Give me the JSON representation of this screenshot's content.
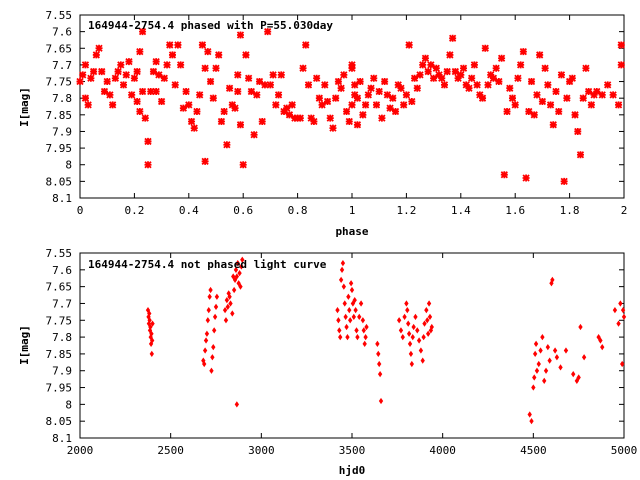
{
  "chart_data": [
    {
      "type": "scatter",
      "title": "164944-2754.4 phased with P=55.030day",
      "xlabel": "phase",
      "ylabel": "I[mag]",
      "xlim": [
        0,
        2
      ],
      "ylim": [
        7.55,
        8.1
      ],
      "y_inverted": true,
      "x_ticks": [
        "0",
        "0.2",
        "0.4",
        "0.6",
        "0.8",
        "1",
        "1.2",
        "1.4",
        "1.6",
        "1.8",
        "2"
      ],
      "y_ticks": [
        "7.55",
        "7.6",
        "7.65",
        "7.7",
        "7.75",
        "7.8",
        "7.85",
        "7.9",
        "7.95",
        "8",
        "8.05",
        "8.1"
      ],
      "grid": false,
      "marker_color": "#ff0000",
      "points": [
        [
          0.0,
          7.75
        ],
        [
          0.01,
          7.73
        ],
        [
          0.02,
          7.8
        ],
        [
          0.02,
          7.7
        ],
        [
          0.03,
          7.82
        ],
        [
          0.04,
          7.74
        ],
        [
          0.05,
          7.72
        ],
        [
          0.06,
          7.67
        ],
        [
          0.07,
          7.65
        ],
        [
          0.08,
          7.72
        ],
        [
          0.09,
          7.78
        ],
        [
          0.1,
          7.75
        ],
        [
          0.11,
          7.79
        ],
        [
          0.12,
          7.82
        ],
        [
          0.13,
          7.74
        ],
        [
          0.14,
          7.72
        ],
        [
          0.15,
          7.7
        ],
        [
          0.16,
          7.76
        ],
        [
          0.17,
          7.73
        ],
        [
          0.18,
          7.69
        ],
        [
          0.19,
          7.79
        ],
        [
          0.2,
          7.74
        ],
        [
          0.21,
          7.72
        ],
        [
          0.21,
          7.81
        ],
        [
          0.22,
          7.66
        ],
        [
          0.22,
          7.84
        ],
        [
          0.23,
          7.78
        ],
        [
          0.23,
          7.6
        ],
        [
          0.24,
          7.86
        ],
        [
          0.25,
          7.93
        ],
        [
          0.25,
          8.0
        ],
        [
          0.26,
          7.78
        ],
        [
          0.27,
          7.72
        ],
        [
          0.28,
          7.69
        ],
        [
          0.28,
          7.78
        ],
        [
          0.29,
          7.73
        ],
        [
          0.3,
          7.81
        ],
        [
          0.31,
          7.74
        ],
        [
          0.32,
          7.7
        ],
        [
          0.33,
          7.64
        ],
        [
          0.34,
          7.67
        ],
        [
          0.35,
          7.76
        ],
        [
          0.36,
          7.64
        ],
        [
          0.37,
          7.7
        ],
        [
          0.38,
          7.83
        ],
        [
          0.39,
          7.78
        ],
        [
          0.4,
          7.82
        ],
        [
          0.41,
          7.87
        ],
        [
          0.42,
          7.89
        ],
        [
          0.43,
          7.84
        ],
        [
          0.44,
          7.79
        ],
        [
          0.45,
          7.64
        ],
        [
          0.46,
          7.71
        ],
        [
          0.46,
          7.99
        ],
        [
          0.47,
          7.66
        ],
        [
          0.48,
          7.75
        ],
        [
          0.49,
          7.8
        ],
        [
          0.5,
          7.71
        ],
        [
          0.51,
          7.67
        ],
        [
          0.52,
          7.87
        ],
        [
          0.53,
          7.84
        ],
        [
          0.54,
          7.94
        ],
        [
          0.55,
          7.77
        ],
        [
          0.56,
          7.82
        ],
        [
          0.57,
          7.83
        ],
        [
          0.58,
          7.73
        ],
        [
          0.58,
          7.78
        ],
        [
          0.59,
          7.61
        ],
        [
          0.59,
          7.88
        ],
        [
          0.6,
          8.0
        ],
        [
          0.61,
          7.67
        ],
        [
          0.62,
          7.74
        ],
        [
          0.63,
          7.78
        ],
        [
          0.64,
          7.91
        ],
        [
          0.65,
          7.79
        ],
        [
          0.66,
          7.75
        ],
        [
          0.67,
          7.87
        ],
        [
          0.68,
          7.76
        ],
        [
          0.69,
          7.6
        ],
        [
          0.7,
          7.76
        ],
        [
          0.71,
          7.73
        ],
        [
          0.72,
          7.82
        ],
        [
          0.73,
          7.79
        ],
        [
          0.74,
          7.73
        ],
        [
          0.75,
          7.84
        ],
        [
          0.76,
          7.83
        ],
        [
          0.77,
          7.85
        ],
        [
          0.78,
          7.82
        ],
        [
          0.79,
          7.86
        ],
        [
          0.8,
          7.86
        ],
        [
          0.81,
          7.86
        ],
        [
          0.82,
          7.71
        ],
        [
          0.83,
          7.64
        ],
        [
          0.84,
          7.76
        ],
        [
          0.85,
          7.86
        ],
        [
          0.86,
          7.87
        ],
        [
          0.87,
          7.74
        ],
        [
          0.88,
          7.8
        ],
        [
          0.89,
          7.82
        ],
        [
          0.9,
          7.76
        ],
        [
          0.91,
          7.81
        ],
        [
          0.92,
          7.86
        ],
        [
          0.93,
          7.89
        ],
        [
          0.94,
          7.8
        ],
        [
          0.95,
          7.75
        ],
        [
          0.96,
          7.77
        ],
        [
          0.97,
          7.73
        ],
        [
          0.98,
          7.84
        ],
        [
          0.99,
          7.87
        ],
        [
          1.0,
          7.71
        ],
        [
          1.0,
          7.82
        ],
        [
          1.0,
          7.7
        ],
        [
          1.01,
          7.76
        ],
        [
          1.01,
          7.79
        ],
        [
          1.02,
          7.8
        ],
        [
          1.02,
          7.88
        ],
        [
          1.03,
          7.75
        ],
        [
          1.04,
          7.85
        ],
        [
          1.05,
          7.82
        ],
        [
          1.06,
          7.79
        ],
        [
          1.07,
          7.77
        ],
        [
          1.08,
          7.74
        ],
        [
          1.09,
          7.82
        ],
        [
          1.1,
          7.78
        ],
        [
          1.11,
          7.86
        ],
        [
          1.12,
          7.75
        ],
        [
          1.13,
          7.79
        ],
        [
          1.14,
          7.83
        ],
        [
          1.15,
          7.8
        ],
        [
          1.16,
          7.84
        ],
        [
          1.17,
          7.76
        ],
        [
          1.18,
          7.77
        ],
        [
          1.19,
          7.82
        ],
        [
          1.2,
          7.79
        ],
        [
          1.21,
          7.64
        ],
        [
          1.22,
          7.81
        ],
        [
          1.23,
          7.74
        ],
        [
          1.24,
          7.77
        ],
        [
          1.25,
          7.73
        ],
        [
          1.26,
          7.7
        ],
        [
          1.27,
          7.68
        ],
        [
          1.28,
          7.72
        ],
        [
          1.29,
          7.7
        ],
        [
          1.3,
          7.74
        ],
        [
          1.31,
          7.71
        ],
        [
          1.32,
          7.73
        ],
        [
          1.33,
          7.74
        ],
        [
          1.34,
          7.76
        ],
        [
          1.35,
          7.72
        ],
        [
          1.36,
          7.67
        ],
        [
          1.37,
          7.62
        ],
        [
          1.38,
          7.72
        ],
        [
          1.39,
          7.74
        ],
        [
          1.4,
          7.73
        ],
        [
          1.41,
          7.71
        ],
        [
          1.42,
          7.76
        ],
        [
          1.43,
          7.77
        ],
        [
          1.44,
          7.74
        ],
        [
          1.45,
          7.7
        ],
        [
          1.46,
          7.76
        ],
        [
          1.47,
          7.79
        ],
        [
          1.48,
          7.8
        ],
        [
          1.49,
          7.65
        ],
        [
          1.5,
          7.76
        ],
        [
          1.51,
          7.73
        ],
        [
          1.52,
          7.74
        ],
        [
          1.53,
          7.71
        ],
        [
          1.54,
          7.75
        ],
        [
          1.55,
          7.68
        ],
        [
          1.56,
          8.03
        ],
        [
          1.57,
          7.84
        ],
        [
          1.58,
          7.77
        ],
        [
          1.59,
          7.8
        ],
        [
          1.6,
          7.82
        ],
        [
          1.61,
          7.74
        ],
        [
          1.62,
          7.7
        ],
        [
          1.63,
          7.66
        ],
        [
          1.64,
          8.04
        ],
        [
          1.65,
          7.84
        ],
        [
          1.66,
          7.75
        ],
        [
          1.67,
          7.85
        ],
        [
          1.68,
          7.79
        ],
        [
          1.69,
          7.67
        ],
        [
          1.7,
          7.81
        ],
        [
          1.71,
          7.71
        ],
        [
          1.72,
          7.76
        ],
        [
          1.73,
          7.82
        ],
        [
          1.74,
          7.88
        ],
        [
          1.75,
          7.78
        ],
        [
          1.76,
          7.84
        ],
        [
          1.77,
          7.73
        ],
        [
          1.78,
          8.05
        ],
        [
          1.79,
          7.8
        ],
        [
          1.8,
          7.75
        ],
        [
          1.81,
          7.74
        ],
        [
          1.82,
          7.85
        ],
        [
          1.83,
          7.9
        ],
        [
          1.84,
          7.97
        ],
        [
          1.85,
          7.8
        ],
        [
          1.86,
          7.71
        ],
        [
          1.87,
          7.78
        ],
        [
          1.88,
          7.82
        ],
        [
          1.89,
          7.79
        ],
        [
          1.9,
          7.78
        ],
        [
          1.92,
          7.79
        ],
        [
          1.94,
          7.76
        ],
        [
          1.96,
          7.79
        ],
        [
          1.98,
          7.82
        ],
        [
          1.99,
          7.64
        ],
        [
          1.99,
          7.7
        ]
      ]
    },
    {
      "type": "scatter",
      "title": "164944-2754.4 not phased light curve",
      "xlabel": "hjd0",
      "ylabel": "I[mag]",
      "xlim": [
        2000,
        5000
      ],
      "ylim": [
        7.55,
        8.1
      ],
      "y_inverted": true,
      "x_ticks": [
        "2000",
        "2500",
        "3000",
        "3500",
        "4000",
        "4500",
        "5000"
      ],
      "y_ticks": [
        "7.55",
        "7.6",
        "7.65",
        "7.7",
        "7.75",
        "7.8",
        "7.85",
        "7.9",
        "7.95",
        "8",
        "8.05",
        "8.1"
      ],
      "grid": false,
      "marker_color": "#ff0000",
      "points": [
        [
          2375,
          7.72
        ],
        [
          2378,
          7.74
        ],
        [
          2380,
          7.76
        ],
        [
          2382,
          7.73
        ],
        [
          2384,
          7.75
        ],
        [
          2386,
          7.78
        ],
        [
          2388,
          7.77
        ],
        [
          2390,
          7.8
        ],
        [
          2392,
          7.82
        ],
        [
          2394,
          7.79
        ],
        [
          2396,
          7.85
        ],
        [
          2398,
          7.81
        ],
        [
          2400,
          7.76
        ],
        [
          2680,
          7.87
        ],
        [
          2685,
          7.88
        ],
        [
          2690,
          7.84
        ],
        [
          2695,
          7.81
        ],
        [
          2700,
          7.79
        ],
        [
          2705,
          7.75
        ],
        [
          2710,
          7.72
        ],
        [
          2715,
          7.68
        ],
        [
          2720,
          7.66
        ],
        [
          2725,
          7.9
        ],
        [
          2730,
          7.86
        ],
        [
          2735,
          7.83
        ],
        [
          2740,
          7.78
        ],
        [
          2745,
          7.74
        ],
        [
          2750,
          7.71
        ],
        [
          2755,
          7.68
        ],
        [
          2800,
          7.72
        ],
        [
          2810,
          7.69
        ],
        [
          2820,
          7.67
        ],
        [
          2830,
          7.7
        ],
        [
          2840,
          7.73
        ],
        [
          2850,
          7.66
        ],
        [
          2855,
          7.63
        ],
        [
          2860,
          7.6
        ],
        [
          2865,
          7.62
        ],
        [
          2870,
          7.58
        ],
        [
          2875,
          7.64
        ],
        [
          2880,
          7.61
        ],
        [
          2885,
          7.65
        ],
        [
          2890,
          7.59
        ],
        [
          2895,
          7.57
        ],
        [
          2865,
          8.0
        ],
        [
          2805,
          7.75
        ],
        [
          2815,
          7.71
        ],
        [
          2825,
          7.68
        ],
        [
          2845,
          7.62
        ],
        [
          3420,
          7.72
        ],
        [
          3425,
          7.75
        ],
        [
          3430,
          7.78
        ],
        [
          3435,
          7.8
        ],
        [
          3440,
          7.63
        ],
        [
          3445,
          7.6
        ],
        [
          3450,
          7.58
        ],
        [
          3455,
          7.65
        ],
        [
          3460,
          7.7
        ],
        [
          3465,
          7.74
        ],
        [
          3470,
          7.77
        ],
        [
          3475,
          7.8
        ],
        [
          3480,
          7.68
        ],
        [
          3485,
          7.72
        ],
        [
          3490,
          7.75
        ],
        [
          3495,
          7.64
        ],
        [
          3500,
          7.66
        ],
        [
          3505,
          7.7
        ],
        [
          3510,
          7.74
        ],
        [
          3515,
          7.69
        ],
        [
          3520,
          7.72
        ],
        [
          3525,
          7.78
        ],
        [
          3530,
          7.8
        ],
        [
          3540,
          7.74
        ],
        [
          3550,
          7.7
        ],
        [
          3560,
          7.75
        ],
        [
          3565,
          7.78
        ],
        [
          3570,
          7.82
        ],
        [
          3575,
          7.8
        ],
        [
          3580,
          7.77
        ],
        [
          3640,
          7.82
        ],
        [
          3645,
          7.85
        ],
        [
          3650,
          7.88
        ],
        [
          3655,
          7.91
        ],
        [
          3660,
          7.99
        ],
        [
          3760,
          7.75
        ],
        [
          3770,
          7.78
        ],
        [
          3780,
          7.8
        ],
        [
          3790,
          7.74
        ],
        [
          3800,
          7.7
        ],
        [
          3805,
          7.72
        ],
        [
          3810,
          7.76
        ],
        [
          3815,
          7.79
        ],
        [
          3820,
          7.82
        ],
        [
          3825,
          7.85
        ],
        [
          3830,
          7.88
        ],
        [
          3835,
          7.8
        ],
        [
          3840,
          7.77
        ],
        [
          3850,
          7.74
        ],
        [
          3860,
          7.78
        ],
        [
          3870,
          7.81
        ],
        [
          3880,
          7.84
        ],
        [
          3890,
          7.87
        ],
        [
          3895,
          7.8
        ],
        [
          3900,
          7.76
        ],
        [
          3910,
          7.72
        ],
        [
          3915,
          7.75
        ],
        [
          3920,
          7.79
        ],
        [
          3925,
          7.7
        ],
        [
          3930,
          7.74
        ],
        [
          3935,
          7.78
        ],
        [
          3940,
          7.77
        ],
        [
          4480,
          8.03
        ],
        [
          4490,
          8.05
        ],
        [
          4500,
          7.95
        ],
        [
          4505,
          7.92
        ],
        [
          4510,
          7.85
        ],
        [
          4515,
          7.82
        ],
        [
          4520,
          7.9
        ],
        [
          4530,
          7.88
        ],
        [
          4540,
          7.84
        ],
        [
          4550,
          7.8
        ],
        [
          4560,
          7.93
        ],
        [
          4570,
          7.9
        ],
        [
          4580,
          7.83
        ],
        [
          4590,
          7.87
        ],
        [
          4600,
          7.64
        ],
        [
          4605,
          7.63
        ],
        [
          4620,
          7.84
        ],
        [
          4630,
          7.86
        ],
        [
          4650,
          7.89
        ],
        [
          4680,
          7.84
        ],
        [
          4720,
          7.91
        ],
        [
          4740,
          7.93
        ],
        [
          4750,
          7.92
        ],
        [
          4760,
          7.77
        ],
        [
          4780,
          7.86
        ],
        [
          4860,
          7.8
        ],
        [
          4870,
          7.81
        ],
        [
          4880,
          7.83
        ],
        [
          4950,
          7.72
        ],
        [
          4970,
          7.76
        ],
        [
          4980,
          7.7
        ],
        [
          4990,
          7.88
        ],
        [
          4995,
          7.72
        ],
        [
          5000,
          7.74
        ]
      ]
    }
  ]
}
